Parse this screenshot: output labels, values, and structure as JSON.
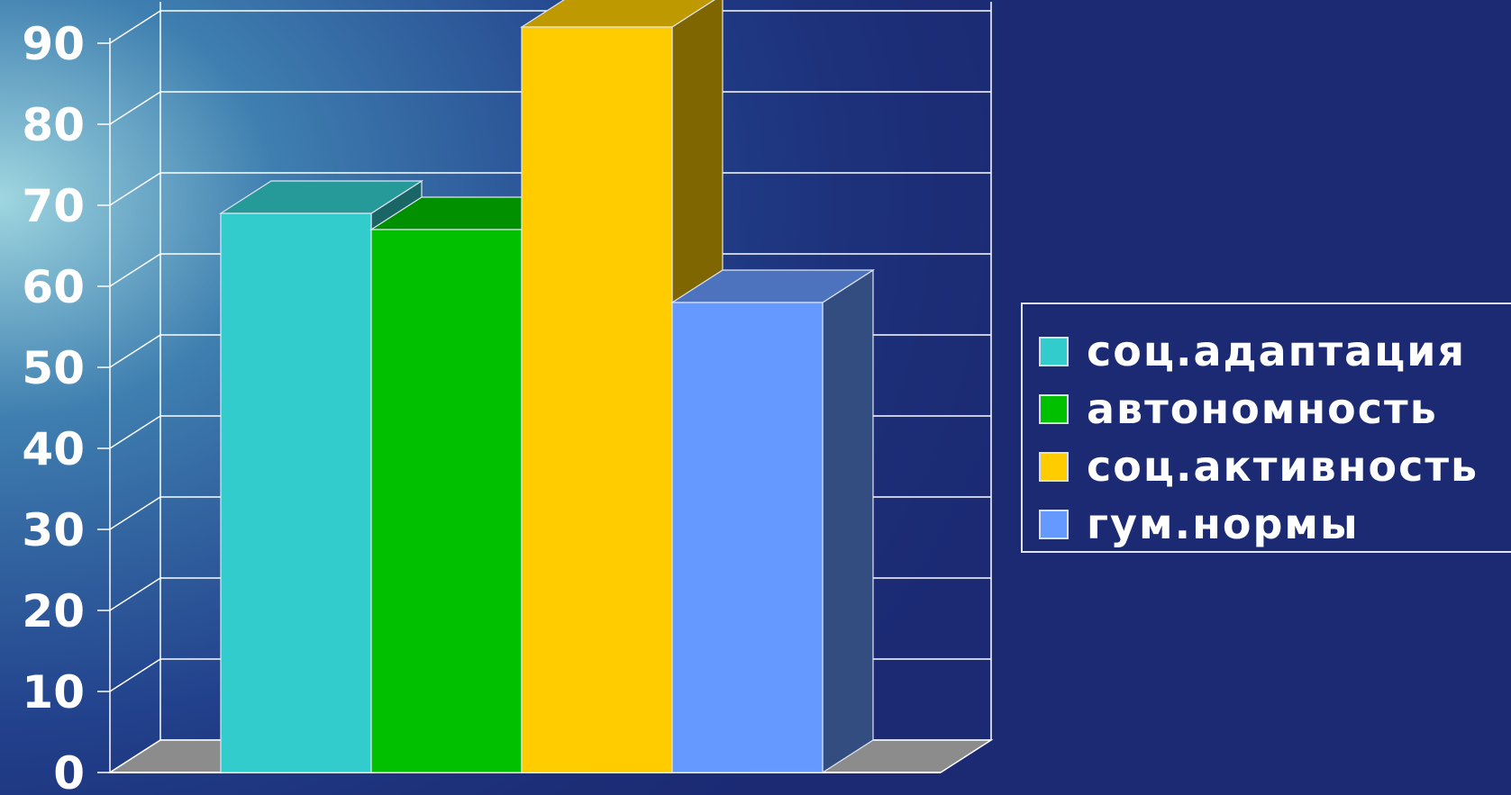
{
  "chart_data": {
    "type": "bar",
    "three_d": true,
    "categories": [
      ""
    ],
    "series": [
      {
        "name": "соц.адаптация",
        "values": [
          69
        ],
        "color": "#33cccc"
      },
      {
        "name": "автономность",
        "values": [
          67
        ],
        "color": "#00c000"
      },
      {
        "name": "соц.активность",
        "values": [
          92
        ],
        "color": "#ffcc00"
      },
      {
        "name": "гум.нормы",
        "values": [
          58
        ],
        "color": "#6699ff"
      }
    ],
    "yticks": [
      "0",
      "10",
      "20",
      "30",
      "40",
      "50",
      "60",
      "70",
      "80",
      "90"
    ],
    "ylim": [
      0,
      90
    ],
    "grid": true,
    "legend": "right",
    "colors": {
      "background": "#1b2a73",
      "gridline": "#ffffff",
      "floor": "#8c8c8c"
    }
  }
}
